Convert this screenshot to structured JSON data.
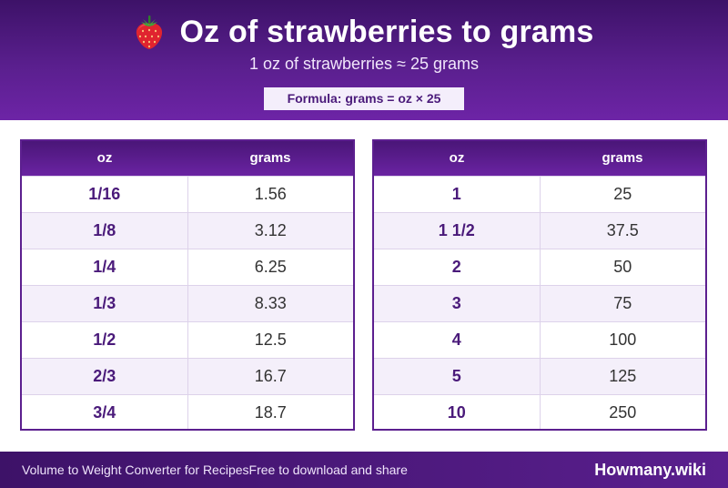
{
  "header": {
    "icon": "strawberry-icon",
    "title": "Oz of strawberries to grams",
    "subtitle": "1 oz of strawberries ≈ 25 grams",
    "formula": "Formula: grams = oz × 25"
  },
  "colors": {
    "brand_purple": "#5a1f8e",
    "dark_purple": "#3d1268",
    "row_alt": "#f4effa",
    "accent_text": "#4a1a7a"
  },
  "tables": [
    {
      "headers": [
        "oz",
        "grams"
      ],
      "rows": [
        [
          "1/16",
          "1.56"
        ],
        [
          "1/8",
          "3.12"
        ],
        [
          "1/4",
          "6.25"
        ],
        [
          "1/3",
          "8.33"
        ],
        [
          "1/2",
          "12.5"
        ],
        [
          "2/3",
          "16.7"
        ],
        [
          "3/4",
          "18.7"
        ]
      ]
    },
    {
      "headers": [
        "oz",
        "grams"
      ],
      "rows": [
        [
          "1",
          "25"
        ],
        [
          "1 1/2",
          "37.5"
        ],
        [
          "2",
          "50"
        ],
        [
          "3",
          "75"
        ],
        [
          "4",
          "100"
        ],
        [
          "5",
          "125"
        ],
        [
          "10",
          "250"
        ]
      ]
    }
  ],
  "footer": {
    "left_text": "Volume to Weight Converter for Recipes",
    "middle_text": "Free to download and share",
    "brand": "Howmany.wiki"
  }
}
